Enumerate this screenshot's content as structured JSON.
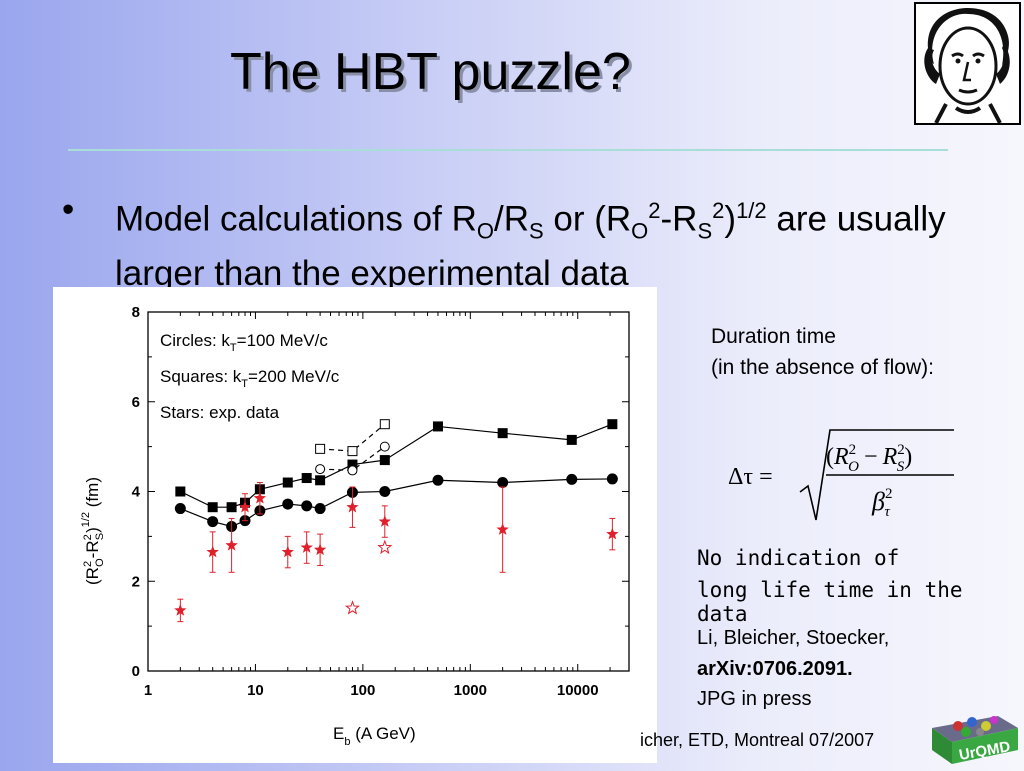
{
  "slide": {
    "title": "The HBT puzzle?",
    "bullet_mark": "•",
    "bullet": {
      "p1": "Model calculations of R",
      "s1": "O",
      "p2": "/R",
      "s2": "S",
      "p3": " or (R",
      "s3": "O",
      "sup1": "2",
      "p4": "-R",
      "s4": "S",
      "sup2": "2",
      "p5": ")",
      "sup3": "1/2",
      "p6": " are usually larger than the experimental data"
    },
    "right_panel": {
      "duration_line1": "Duration time",
      "duration_line2": "(in the absence of flow):",
      "formula_lhs": "Δτ =",
      "formula_num_open": "(",
      "formula_num_R1": "R",
      "formula_num_sup1": "2",
      "formula_num_sub1": "O",
      "formula_num_minus": "−",
      "formula_num_R2": "R",
      "formula_num_sup2": "2",
      "formula_num_sub2": "S",
      "formula_num_close": ")",
      "formula_den_beta": "β",
      "formula_den_sup": "2",
      "formula_den_sub": "τ",
      "note_line1": "No indication of",
      "note_line2": "long life time in the data",
      "ref_line1": "Li, Bleicher, Stoecker,",
      "ref_line2": "arXiv:0706.2091.",
      "ref_line3": "JPG in press"
    },
    "footer": "icher, ETD, Montreal 07/2007",
    "logo_text": "UrQMD"
  },
  "chart_data": {
    "type": "scatter",
    "xscale": "log",
    "xlim": [
      1,
      30000
    ],
    "ylim": [
      0,
      8
    ],
    "xticks": [
      {
        "v": 1,
        "l": "1"
      },
      {
        "v": 10,
        "l": "10"
      },
      {
        "v": 100,
        "l": "100"
      },
      {
        "v": 1000,
        "l": "1000"
      },
      {
        "v": 10000,
        "l": "10000"
      }
    ],
    "yticks": [
      0,
      2,
      4,
      6,
      8
    ],
    "ylabel": {
      "a": "(R",
      "b": "2",
      "c": "O",
      "d": "-R",
      "e": "2",
      "f": "S",
      "g": ")",
      "h": "1/2",
      "i": "  (fm)"
    },
    "xlabel": {
      "a": "E",
      "b": "b",
      "c": " (A GeV)"
    },
    "legend": {
      "l1a": "Circles:   k",
      "l1b": "T",
      "l1c": "=100 MeV/c",
      "l2a": "Squares: k",
      "l2b": "T",
      "l2c": "=200 MeV/c",
      "l3": "Stars: exp. data"
    },
    "series": [
      {
        "marker": "square-filled",
        "line": true,
        "x": [
          2,
          4,
          6,
          8,
          11,
          20,
          30,
          40,
          80,
          160,
          500,
          2000,
          8800,
          21000
        ],
        "y": [
          4.0,
          3.65,
          3.65,
          3.75,
          4.05,
          4.2,
          4.3,
          4.25,
          4.6,
          4.7,
          5.45,
          5.3,
          5.15,
          5.5
        ]
      },
      {
        "marker": "circle-filled",
        "line": true,
        "x": [
          2,
          4,
          6,
          8,
          11,
          20,
          30,
          40,
          80,
          160,
          500,
          2000,
          8800,
          21000
        ],
        "y": [
          3.62,
          3.33,
          3.22,
          3.35,
          3.57,
          3.72,
          3.68,
          3.62,
          3.98,
          4.0,
          4.25,
          4.2,
          4.27,
          4.28
        ]
      },
      {
        "marker": "square-open",
        "line": "dashed",
        "x": [
          40,
          80,
          160
        ],
        "y": [
          4.95,
          4.9,
          5.5
        ]
      },
      {
        "marker": "circle-open",
        "line": "dashed",
        "x": [
          40,
          80,
          160
        ],
        "y": [
          4.5,
          4.47,
          5.0
        ]
      },
      {
        "marker": "star-filled",
        "line": false,
        "color": "#e0202a",
        "x": [
          2,
          4,
          6,
          8,
          11,
          20,
          30,
          40,
          80,
          160,
          2000,
          21000
        ],
        "y": [
          1.35,
          2.65,
          2.8,
          3.65,
          3.85,
          2.65,
          2.75,
          2.7,
          3.65,
          3.33,
          3.15,
          3.05
        ],
        "err": [
          0.25,
          0.45,
          0.6,
          0.3,
          0.35,
          0.35,
          0.35,
          0.35,
          0.45,
          0.35,
          0.95,
          0.35
        ]
      },
      {
        "marker": "star-open",
        "line": false,
        "color": "#e0202a",
        "x": [
          80,
          160
        ],
        "y": [
          1.4,
          2.75
        ]
      }
    ]
  }
}
